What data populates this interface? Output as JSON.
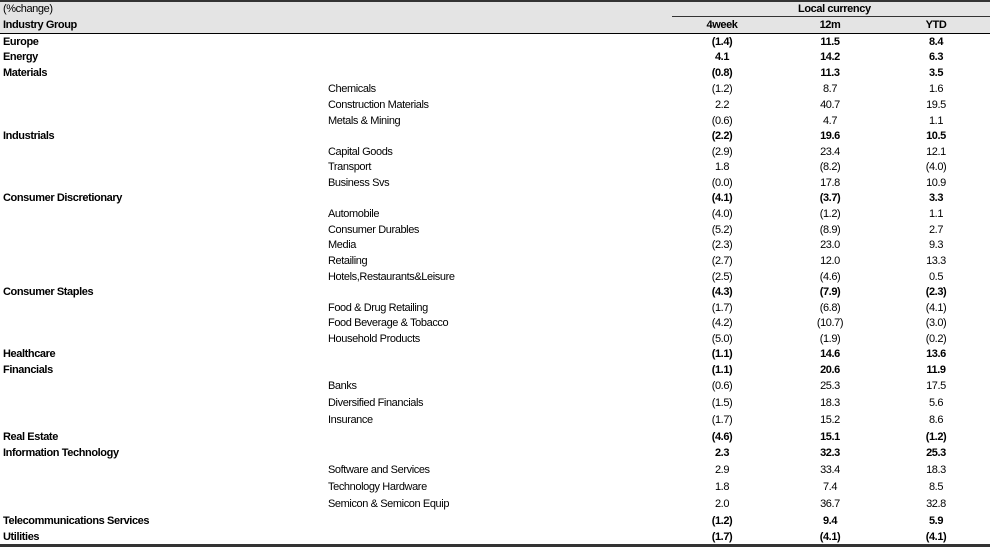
{
  "header": {
    "unit_label": "(%change)",
    "group_label": "Local currency",
    "first_col": "Industry Group",
    "columns": [
      "4week",
      "12m",
      "YTD"
    ]
  },
  "rows": [
    {
      "name": "Europe",
      "level": 0,
      "values": [
        "(1.4)",
        "11.5",
        "8.4"
      ]
    },
    {
      "name": "Energy",
      "level": 0,
      "values": [
        "4.1",
        "14.2",
        "6.3"
      ]
    },
    {
      "name": "Materials",
      "level": 0,
      "values": [
        "(0.8)",
        "11.3",
        "3.5"
      ]
    },
    {
      "name": "Chemicals",
      "level": 1,
      "values": [
        "(1.2)",
        "8.7",
        "1.6"
      ]
    },
    {
      "name": "Construction Materials",
      "level": 1,
      "values": [
        "2.2",
        "40.7",
        "19.5"
      ]
    },
    {
      "name": "Metals & Mining",
      "level": 1,
      "values": [
        "(0.6)",
        "4.7",
        "1.1"
      ]
    },
    {
      "name": "Industrials",
      "level": 0,
      "values": [
        "(2.2)",
        "19.6",
        "10.5"
      ]
    },
    {
      "name": "Capital Goods",
      "level": 1,
      "values": [
        "(2.9)",
        "23.4",
        "12.1"
      ]
    },
    {
      "name": "Transport",
      "level": 1,
      "values": [
        "1.8",
        "(8.2)",
        "(4.0)"
      ]
    },
    {
      "name": "Business Svs",
      "level": 1,
      "values": [
        "(0.0)",
        "17.8",
        "10.9"
      ]
    },
    {
      "name": "Consumer Discretionary",
      "level": 0,
      "values": [
        "(4.1)",
        "(3.7)",
        "3.3"
      ]
    },
    {
      "name": "Automobile",
      "level": 1,
      "values": [
        "(4.0)",
        "(1.2)",
        "1.1"
      ]
    },
    {
      "name": "Consumer Durables",
      "level": 1,
      "values": [
        "(5.2)",
        "(8.9)",
        "2.7"
      ]
    },
    {
      "name": "Media",
      "level": 1,
      "values": [
        "(2.3)",
        "23.0",
        "9.3"
      ]
    },
    {
      "name": "Retailing",
      "level": 1,
      "values": [
        "(2.7)",
        "12.0",
        "13.3"
      ]
    },
    {
      "name": "Hotels,Restaurants&Leisure",
      "level": 1,
      "values": [
        "(2.5)",
        "(4.6)",
        "0.5"
      ]
    },
    {
      "name": "Consumer Staples",
      "level": 0,
      "values": [
        "(4.3)",
        "(7.9)",
        "(2.3)"
      ]
    },
    {
      "name": "Food & Drug Retailing",
      "level": 1,
      "values": [
        "(1.7)",
        "(6.8)",
        "(4.1)"
      ]
    },
    {
      "name": "Food Beverage & Tobacco",
      "level": 1,
      "values": [
        "(4.2)",
        "(10.7)",
        "(3.0)"
      ]
    },
    {
      "name": "Household Products",
      "level": 1,
      "values": [
        "(5.0)",
        "(1.9)",
        "(0.2)"
      ]
    },
    {
      "name": "Healthcare",
      "level": 0,
      "values": [
        "(1.1)",
        "14.6",
        "13.6"
      ]
    },
    {
      "name": "Financials",
      "level": 0,
      "values": [
        "(1.1)",
        "20.6",
        "11.9"
      ]
    },
    {
      "name": "Banks",
      "level": 1,
      "values": [
        "(0.6)",
        "25.3",
        "17.5"
      ]
    },
    {
      "name": "Diversified Financials",
      "level": 1,
      "values": [
        "(1.5)",
        "18.3",
        "5.6"
      ]
    },
    {
      "name": "Insurance",
      "level": 1,
      "values": [
        "(1.7)",
        "15.2",
        "8.6"
      ]
    },
    {
      "name": "Real Estate",
      "level": 0,
      "values": [
        "(4.6)",
        "15.1",
        "(1.2)"
      ]
    },
    {
      "name": "Information Technology",
      "level": 0,
      "values": [
        "2.3",
        "32.3",
        "25.3"
      ]
    },
    {
      "name": "Software and Services",
      "level": 1,
      "values": [
        "2.9",
        "33.4",
        "18.3"
      ]
    },
    {
      "name": "Technology Hardware",
      "level": 1,
      "values": [
        "1.8",
        "7.4",
        "8.5"
      ]
    },
    {
      "name": "Semicon & Semicon Equip",
      "level": 1,
      "values": [
        "2.0",
        "36.7",
        "32.8"
      ]
    },
    {
      "name": "Telecommunications Services",
      "level": 0,
      "values": [
        "(1.2)",
        "9.4",
        "5.9"
      ]
    },
    {
      "name": "Utilities",
      "level": 0,
      "values": [
        "(1.7)",
        "(4.1)",
        "(4.1)"
      ]
    }
  ]
}
